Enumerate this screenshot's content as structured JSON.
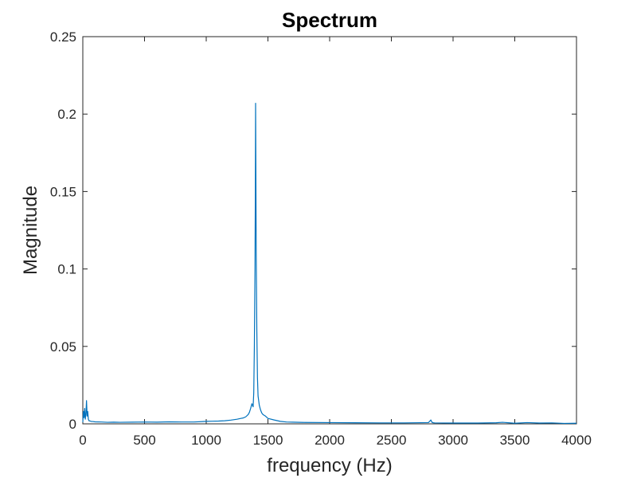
{
  "chart_data": {
    "type": "line",
    "title": "Spectrum",
    "xlabel": "frequency (Hz)",
    "ylabel": "Magnitude",
    "xlim": [
      0,
      4000
    ],
    "ylim": [
      0,
      0.25
    ],
    "xticks": [
      0,
      500,
      1000,
      1500,
      2000,
      2500,
      3000,
      3500,
      4000
    ],
    "xtick_labels": [
      "0",
      "500",
      "1000",
      "1500",
      "2000",
      "2500",
      "3000",
      "3500",
      "4000"
    ],
    "yticks": [
      0,
      0.05,
      0.1,
      0.15,
      0.2,
      0.25
    ],
    "ytick_labels": [
      "0",
      "0.05",
      "0.1",
      "0.15",
      "0.2",
      "0.25"
    ],
    "grid": false,
    "line_color": "#0072BD",
    "series": [
      {
        "x": [
          0,
          5,
          10,
          15,
          20,
          25,
          30,
          35,
          40,
          45,
          50,
          60,
          70,
          80,
          100,
          150,
          200,
          250,
          300,
          400,
          500,
          600,
          700,
          800,
          900,
          1000,
          1050,
          1100,
          1150,
          1200,
          1250,
          1280,
          1300,
          1320,
          1340,
          1350,
          1360,
          1370,
          1380,
          1385,
          1390,
          1395,
          1398,
          1400,
          1402,
          1405,
          1410,
          1415,
          1420,
          1430,
          1440,
          1450,
          1460,
          1480,
          1500,
          1550,
          1600,
          1650,
          1700,
          1800,
          2000,
          2200,
          2400,
          2600,
          2800,
          2810,
          2820,
          2830,
          2840,
          2850,
          3000,
          3200,
          3350,
          3400,
          3500,
          3600,
          3700,
          3800,
          3900,
          4000
        ],
        "y": [
          0.001,
          0.008,
          0.004,
          0.01,
          0.003,
          0.006,
          0.015,
          0.005,
          0.008,
          0.003,
          0.002,
          0.0018,
          0.0015,
          0.0015,
          0.0013,
          0.0012,
          0.001,
          0.0011,
          0.001,
          0.0011,
          0.0012,
          0.0011,
          0.0013,
          0.0012,
          0.0012,
          0.0016,
          0.0017,
          0.0018,
          0.002,
          0.0024,
          0.003,
          0.0035,
          0.0038,
          0.0045,
          0.006,
          0.0075,
          0.01,
          0.013,
          0.011,
          0.02,
          0.05,
          0.1,
          0.15,
          0.207,
          0.17,
          0.11,
          0.06,
          0.03,
          0.018,
          0.012,
          0.009,
          0.007,
          0.006,
          0.005,
          0.0035,
          0.0025,
          0.0016,
          0.0012,
          0.0011,
          0.0009,
          0.0008,
          0.0007,
          0.0006,
          0.0006,
          0.0008,
          0.0016,
          0.0025,
          0.0009,
          0.0007,
          0.0006,
          0.0005,
          0.0005,
          0.0007,
          0.001,
          0.0004,
          0.0008,
          0.0005,
          0.0006,
          0.0003,
          0.0004
        ]
      }
    ]
  }
}
